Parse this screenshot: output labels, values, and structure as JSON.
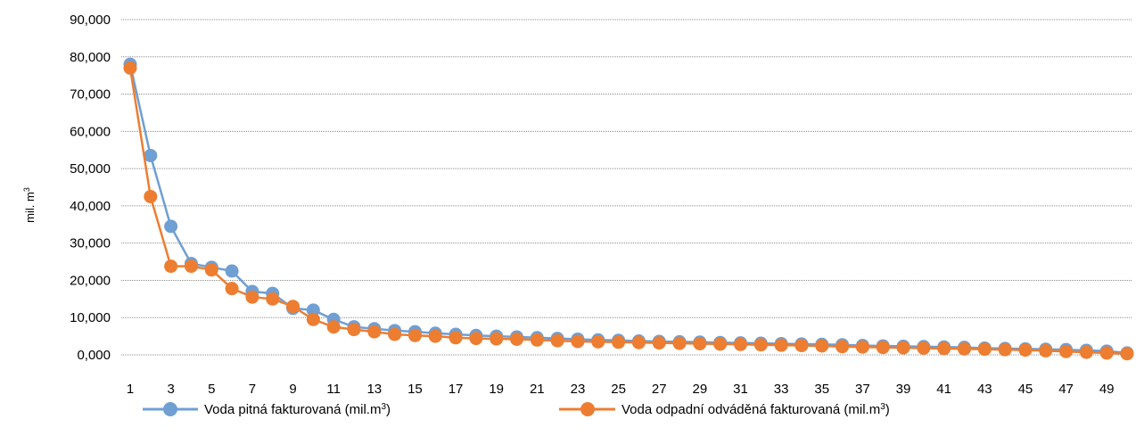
{
  "chart_data": {
    "type": "line",
    "ylabel": "mil. m",
    "ylabel_sup": "3",
    "ylim": [
      0,
      90
    ],
    "yticks": [
      0,
      10,
      20,
      30,
      40,
      50,
      60,
      70,
      80,
      90
    ],
    "ytick_labels": [
      "0,000",
      "10,000",
      "20,000",
      "30,000",
      "40,000",
      "50,000",
      "60,000",
      "70,000",
      "80,000",
      "90,000"
    ],
    "xlim": [
      1,
      50
    ],
    "xticks": [
      1,
      3,
      5,
      7,
      9,
      11,
      13,
      15,
      17,
      19,
      21,
      23,
      25,
      27,
      29,
      31,
      33,
      35,
      37,
      39,
      41,
      43,
      45,
      47,
      49
    ],
    "xtick_labels": [
      "1",
      "3",
      "5",
      "7",
      "9",
      "11",
      "13",
      "15",
      "17",
      "19",
      "21",
      "23",
      "25",
      "27",
      "29",
      "31",
      "33",
      "35",
      "37",
      "39",
      "41",
      "43",
      "45",
      "47",
      "49"
    ],
    "grid": "horizontal, dotted",
    "legend_position": "bottom",
    "series": [
      {
        "name": "Voda pitná fakturovaná (mil.m",
        "name_sup": "3",
        "name_end": ")",
        "color": "#6f9fd3",
        "values": [
          78.0,
          53.5,
          34.5,
          24.5,
          23.5,
          22.5,
          17.0,
          16.5,
          12.5,
          12.0,
          9.5,
          7.5,
          7.0,
          6.5,
          6.2,
          5.8,
          5.5,
          5.2,
          5.0,
          4.8,
          4.6,
          4.4,
          4.2,
          4.0,
          3.9,
          3.7,
          3.6,
          3.5,
          3.4,
          3.3,
          3.2,
          3.1,
          3.0,
          2.9,
          2.8,
          2.7,
          2.5,
          2.4,
          2.3,
          2.2,
          2.1,
          2.0,
          1.8,
          1.7,
          1.6,
          1.5,
          1.4,
          1.2,
          1.0,
          0.5
        ]
      },
      {
        "name": "Voda odpadní odváděná fakturovaná (mil.m",
        "name_sup": "3",
        "name_end": ")",
        "color": "#ed7d31",
        "values": [
          77.0,
          42.5,
          23.8,
          23.8,
          22.8,
          17.8,
          15.5,
          15.0,
          13.0,
          9.5,
          7.5,
          6.8,
          6.2,
          5.5,
          5.2,
          5.0,
          4.6,
          4.4,
          4.3,
          4.2,
          4.0,
          3.8,
          3.6,
          3.5,
          3.4,
          3.3,
          3.2,
          3.1,
          3.0,
          2.9,
          2.8,
          2.7,
          2.6,
          2.5,
          2.4,
          2.2,
          2.1,
          2.0,
          1.9,
          1.8,
          1.7,
          1.6,
          1.5,
          1.4,
          1.3,
          1.1,
          0.9,
          0.7,
          0.5,
          0.3
        ]
      }
    ]
  }
}
